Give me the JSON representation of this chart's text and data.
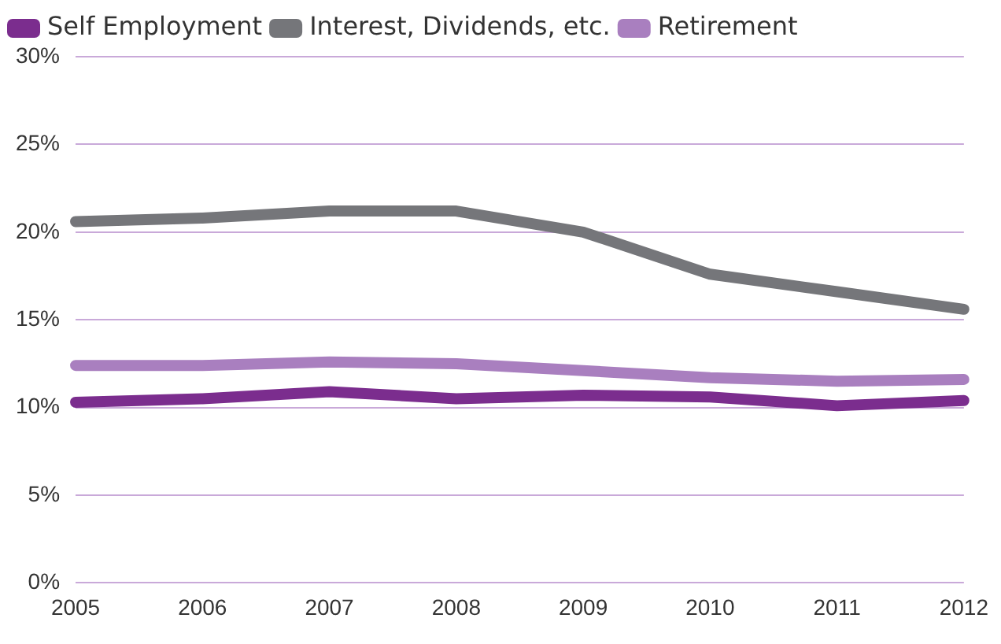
{
  "chart_data": {
    "type": "line",
    "categories": [
      "2005",
      "2006",
      "2007",
      "2008",
      "2009",
      "2010",
      "2011",
      "2012"
    ],
    "series": [
      {
        "name": "Self Employment",
        "color": "#7b2d8e",
        "values": [
          10.3,
          10.5,
          10.9,
          10.5,
          10.7,
          10.6,
          10.1,
          10.4
        ]
      },
      {
        "name": "Interest, Dividends, etc.",
        "color": "#75767a",
        "values": [
          20.6,
          20.8,
          21.2,
          21.2,
          20.0,
          17.6,
          16.6,
          15.6
        ]
      },
      {
        "name": "Retirement",
        "color": "#a97fbf",
        "values": [
          12.4,
          12.4,
          12.6,
          12.5,
          12.1,
          11.7,
          11.5,
          11.6
        ]
      }
    ],
    "ylim": [
      0,
      30
    ],
    "yticks": [
      {
        "value": 0,
        "label": "0%"
      },
      {
        "value": 5,
        "label": "5%"
      },
      {
        "value": 10,
        "label": "10%"
      },
      {
        "value": 15,
        "label": "15%"
      },
      {
        "value": 20,
        "label": "20%"
      },
      {
        "value": 25,
        "label": "25%"
      },
      {
        "value": 30,
        "label": "30%"
      }
    ],
    "grid": "y",
    "legend": "top left",
    "marker": "none",
    "line_style": "solid"
  }
}
